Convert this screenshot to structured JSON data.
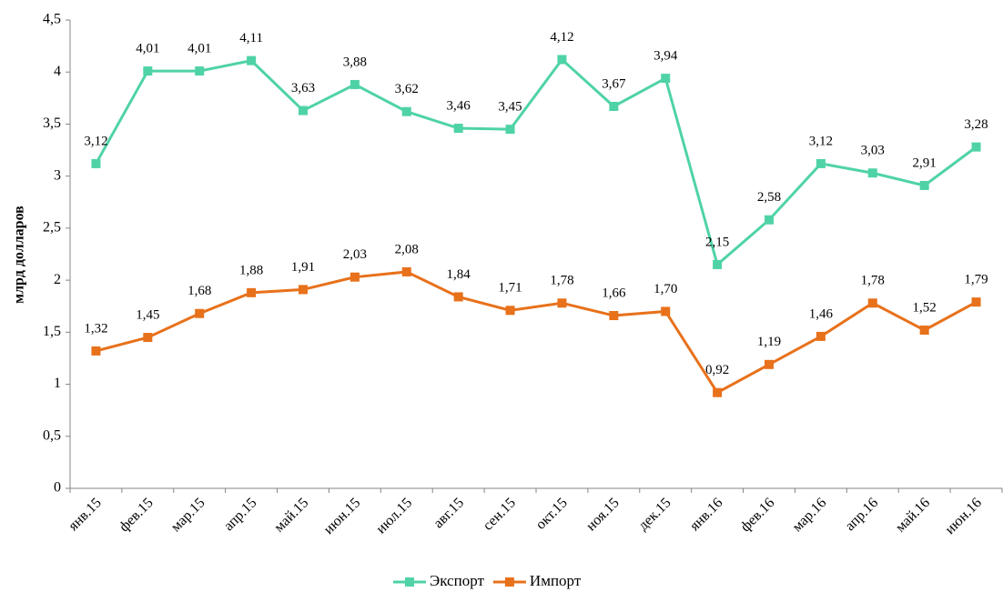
{
  "chart_data": {
    "type": "line",
    "y_label": "млрд долларов",
    "categories": [
      "янв.15",
      "фев.15",
      "мар.15",
      "апр.15",
      "май.15",
      "июн.15",
      "июл.15",
      "авг.15",
      "сен.15",
      "окт.15",
      "ноя.15",
      "дек.15",
      "янв.16",
      "фев.16",
      "мар.16",
      "апр.16",
      "май.16",
      "июн.16"
    ],
    "series": [
      {
        "name": "Экспорт",
        "color": "#4fd3a6",
        "values": [
          3.12,
          4.01,
          4.01,
          4.11,
          3.63,
          3.88,
          3.62,
          3.46,
          3.45,
          4.12,
          3.67,
          3.94,
          2.15,
          2.58,
          3.12,
          3.03,
          2.91,
          3.28
        ],
        "value_labels": [
          "3,12",
          "4,01",
          "4,01",
          "4,11",
          "3,63",
          "3,88",
          "3,62",
          "3,46",
          "3,45",
          "4,12",
          "3,67",
          "3,94",
          "2,15",
          "2,58",
          "3,12",
          "3,03",
          "2,91",
          "3,28"
        ]
      },
      {
        "name": "Импорт",
        "color": "#e8711b",
        "values": [
          1.32,
          1.45,
          1.68,
          1.88,
          1.91,
          2.03,
          2.08,
          1.84,
          1.71,
          1.78,
          1.66,
          1.7,
          0.92,
          1.19,
          1.46,
          1.78,
          1.52,
          1.79
        ],
        "value_labels": [
          "1,32",
          "1,45",
          "1,68",
          "1,88",
          "1,91",
          "2,03",
          "2,08",
          "1,84",
          "1,71",
          "1,78",
          "1,66",
          "1,70",
          "0,92",
          "1,19",
          "1,46",
          "1,78",
          "1,52",
          "1,79"
        ]
      }
    ],
    "ylim": [
      0,
      4.5
    ],
    "yticks": [
      0,
      {
        "value": 0.5,
        "label": "0,5"
      },
      1,
      {
        "value": 1.5,
        "label": "1,5"
      },
      2,
      {
        "value": 2.5,
        "label": "2,5"
      },
      3,
      {
        "value": 3.5,
        "label": "3,5"
      },
      4,
      {
        "value": 4.5,
        "label": "4,5"
      }
    ],
    "grid": false,
    "legend": "bottom"
  }
}
